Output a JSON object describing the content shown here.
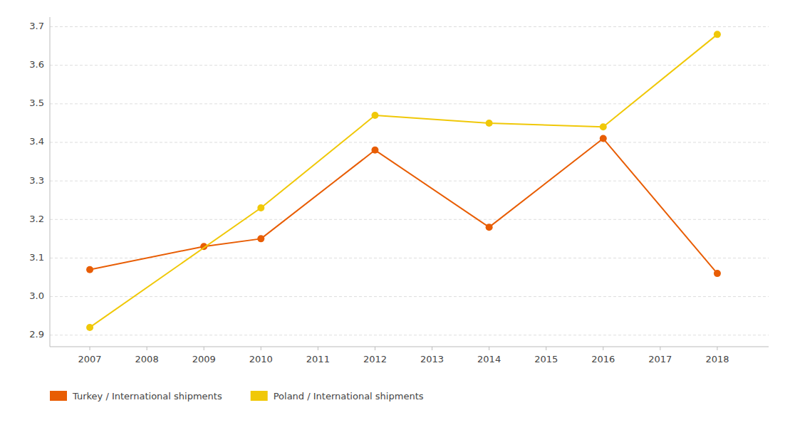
{
  "chart_data": {
    "type": "line",
    "series": [
      {
        "name": "Turkey / International shipments",
        "color": "#e85d04",
        "marker": "circle",
        "x": [
          2007,
          2009,
          2010,
          2012,
          2014,
          2016,
          2018
        ],
        "values": [
          3.07,
          3.13,
          3.15,
          3.38,
          3.18,
          3.41,
          3.06
        ]
      },
      {
        "name": "Poland / International shipments",
        "color": "#f0c808",
        "marker": "circle",
        "x": [
          2007,
          2010,
          2012,
          2014,
          2016,
          2018
        ],
        "values": [
          2.92,
          3.23,
          3.47,
          3.45,
          3.44,
          3.68
        ]
      }
    ],
    "xlim": [
      2006.3,
      2018.9
    ],
    "xticks": [
      2007,
      2008,
      2009,
      2010,
      2011,
      2012,
      2013,
      2014,
      2015,
      2016,
      2017,
      2018
    ],
    "ylim": [
      2.87,
      3.725
    ],
    "yticks": [
      2.9,
      {
        "value": 3,
        "label": "3.0"
      },
      3.1,
      3.2,
      3.3,
      3.4,
      3.5,
      3.6,
      3.7
    ],
    "grid": true,
    "legend": "bottom"
  }
}
